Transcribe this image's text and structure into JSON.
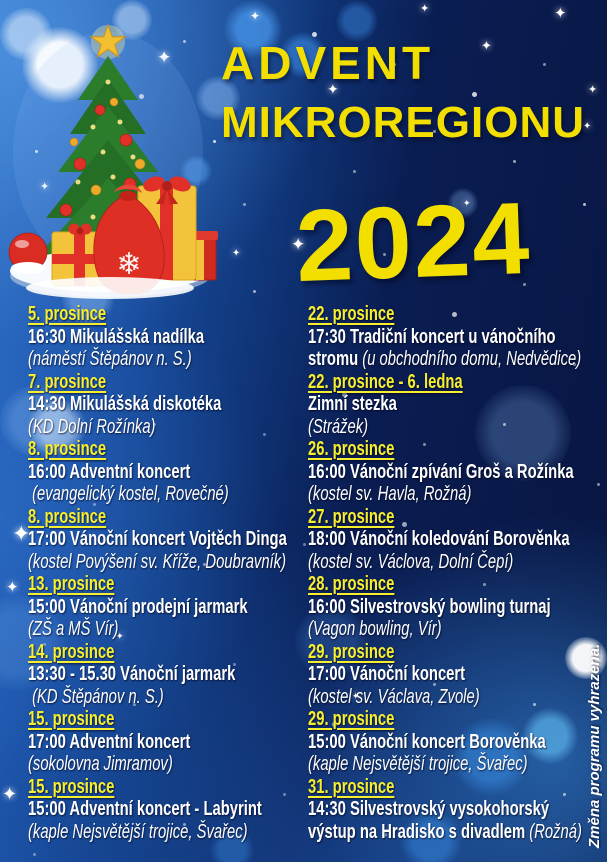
{
  "title": {
    "line1": "ADVENT",
    "line2": "MIKROREGIONU",
    "year": "2024"
  },
  "footer_note": "Změna programu vyhrazena.",
  "icons": {
    "sparkle": "✦",
    "snowflake": "❄"
  },
  "colors": {
    "background_dark": "#081540",
    "background_blue": "#2e6fc6",
    "title_yellow": "#f2df00",
    "date_yellow": "#f7ee2e",
    "text_white": "#ffffff"
  },
  "columns": {
    "left": {
      "events": [
        {
          "date": "5. prosince",
          "rows": [
            [
              {
                "s": "b",
                "t": "16:30 Mikulášská nadílka"
              }
            ],
            [
              {
                "s": "i",
                "t": "(náměstí Štěpánov n. S.)"
              }
            ]
          ]
        },
        {
          "date": "7. prosince",
          "rows": [
            [
              {
                "s": "b",
                "t": "14:30 Mikulášská diskotéka"
              }
            ],
            [
              {
                "s": "i",
                "t": "(KD Dolní Rožínka)"
              }
            ]
          ]
        },
        {
          "date": "8. prosince",
          "rows": [
            [
              {
                "s": "b",
                "t": "16:00 Adventní koncert"
              }
            ],
            [
              {
                "s": "i",
                "t": " (evangelický kostel, Rovečné)"
              }
            ]
          ]
        },
        {
          "date": "8. prosince",
          "rows": [
            [
              {
                "s": "b",
                "t": "17:00 Vánoční koncert Vojtěch Dinga"
              }
            ],
            [
              {
                "s": "i",
                "t": "(kostel Povýšení sv. Kříže, Doubravník)"
              }
            ]
          ]
        },
        {
          "date": "13. prosince",
          "rows": [
            [
              {
                "s": "b",
                "t": "15:00 Vánoční prodejní jarmark"
              }
            ],
            [
              {
                "s": "i",
                "t": "(ZŠ a MŠ Vír)"
              }
            ]
          ]
        },
        {
          "date": "14. prosince",
          "rows": [
            [
              {
                "s": "b",
                "t": "13:30 - 15.30 Vánoční jarmark"
              }
            ],
            [
              {
                "s": "i",
                "t": " (KD Štěpánov n. S.)"
              }
            ]
          ]
        },
        {
          "date": "15. prosince",
          "rows": [
            [
              {
                "s": "b",
                "t": "17:00 Adventní koncert"
              }
            ],
            [
              {
                "s": "i",
                "t": "(sokolovna Jimramov)"
              }
            ]
          ]
        },
        {
          "date": "15. prosince",
          "rows": [
            [
              {
                "s": "b",
                "t": "15:00 Adventní koncert - Labyrint"
              }
            ],
            [
              {
                "s": "i",
                "t": "(kaple Nejsvětější trojice, Švařec)"
              }
            ]
          ]
        }
      ]
    },
    "right": {
      "events": [
        {
          "date": "22. prosince",
          "rows": [
            [
              {
                "s": "b",
                "t": "17:30 Tradiční koncert u vánočního"
              }
            ],
            [
              {
                "s": "b",
                "t": "stromu "
              },
              {
                "s": "i",
                "t": "(u obchodního domu, Nedvědice)"
              }
            ]
          ]
        },
        {
          "date": "22. prosince - 6. ledna",
          "rows": [
            [
              {
                "s": "b",
                "t": "Zimní stezka"
              }
            ],
            [
              {
                "s": "i",
                "t": "(Strážek)"
              }
            ]
          ]
        },
        {
          "date": "26. prosince",
          "rows": [
            [
              {
                "s": "b",
                "t": "16:00 Vánoční zpívání Groš a Rožínka"
              }
            ],
            [
              {
                "s": "i",
                "t": "(kostel sv. Havla, Rožná)"
              }
            ]
          ]
        },
        {
          "date": "27. prosince",
          "rows": [
            [
              {
                "s": "b",
                "t": "18:00 Vánoční koledování Borověnka"
              }
            ],
            [
              {
                "s": "i",
                "t": "(kostel sv. Václova, Dolní Čepí)"
              }
            ]
          ]
        },
        {
          "date": "28. prosince",
          "rows": [
            [
              {
                "s": "b",
                "t": "16:00 Silvestrovský bowling turnaj"
              }
            ],
            [
              {
                "s": "i",
                "t": "(Vagon bowling, Vír)"
              }
            ]
          ]
        },
        {
          "date": "29. prosince",
          "rows": [
            [
              {
                "s": "b",
                "t": "17:00 Vánoční koncert"
              }
            ],
            [
              {
                "s": "i",
                "t": "(kostel sv. Václava, Zvole)"
              }
            ]
          ]
        },
        {
          "date": "29. prosince",
          "rows": [
            [
              {
                "s": "b",
                "t": "15:00 Vánoční koncert Borověnka"
              }
            ],
            [
              {
                "s": "i",
                "t": "(kaple Nejsvětější trojice, Švařec)"
              }
            ]
          ]
        },
        {
          "date": "31. prosince",
          "rows": [
            [
              {
                "s": "b",
                "t": "14:30 Silvestrovský vysokohorský"
              }
            ],
            [
              {
                "s": "b",
                "t": "výstup na Hradisko s divadlem "
              },
              {
                "s": "i",
                "t": "(Rožná)"
              }
            ]
          ]
        }
      ]
    }
  }
}
